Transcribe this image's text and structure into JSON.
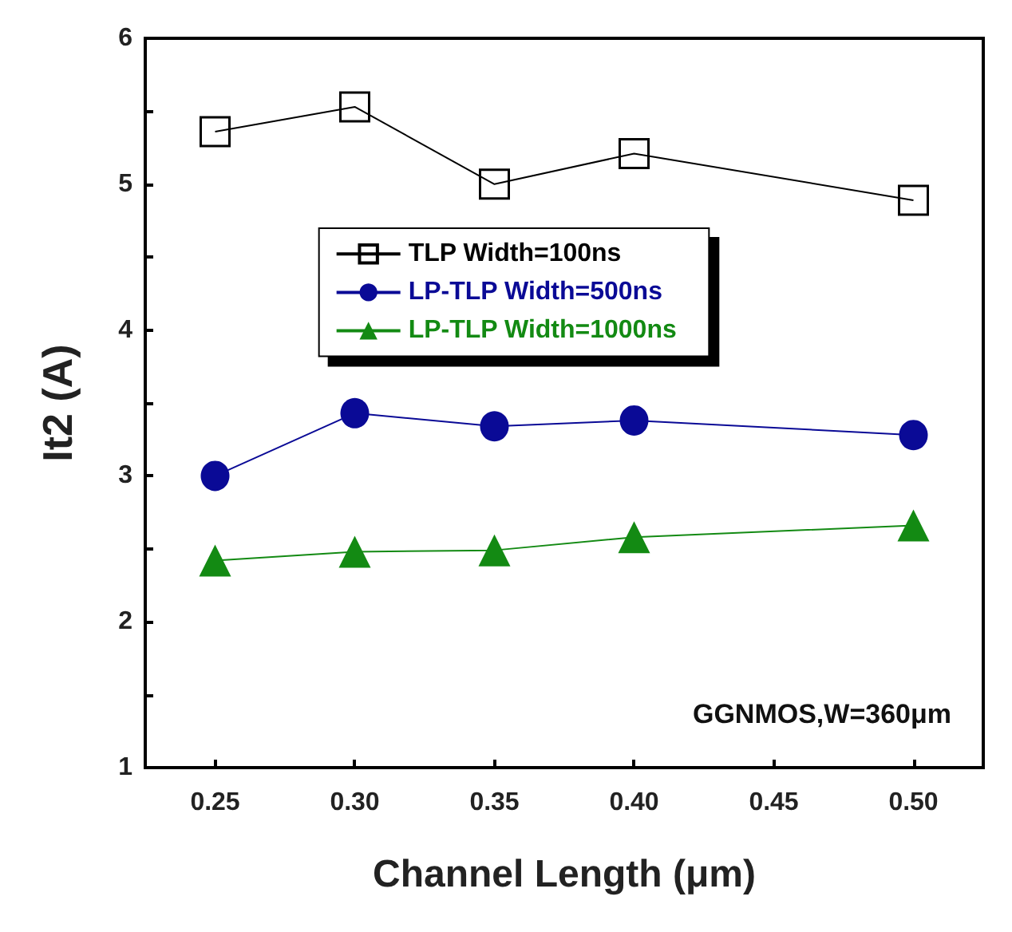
{
  "chart_data": {
    "type": "line",
    "xlabel": "Channel Length (μm)",
    "ylabel": "It2 (A)",
    "xlim": [
      0.225,
      0.525
    ],
    "xticks": [
      0.25,
      {
        "value": 0.3,
        "label": "0.30"
      },
      0.35,
      {
        "value": 0.4,
        "label": "0.40"
      },
      0.45,
      {
        "value": 0.5,
        "label": "0.50"
      }
    ],
    "ylim": [
      1,
      6
    ],
    "yticks": [
      1,
      {
        "value": 1.5,
        "label": null
      },
      2,
      {
        "value": 2.5,
        "label": null
      },
      3,
      {
        "value": 3.5,
        "label": null
      },
      4,
      {
        "value": 4.5,
        "label": null
      },
      5,
      {
        "value": 5.5,
        "label": null
      },
      6
    ],
    "x": [
      0.25,
      0.3,
      0.35,
      0.4,
      0.5
    ],
    "series": [
      {
        "name": "TLP Width=100ns",
        "color": "#000000",
        "marker": "square",
        "values": [
          5.36,
          5.53,
          5.0,
          5.21,
          4.89
        ]
      },
      {
        "name": "LP-TLP Width=500ns",
        "color": "#0a0a96",
        "marker": "circle",
        "values": [
          3.0,
          3.43,
          3.34,
          3.38,
          3.28
        ]
      },
      {
        "name": "LP-TLP Width=1000ns",
        "color": "#138a13",
        "marker": "triangle",
        "values": [
          2.42,
          2.48,
          2.49,
          2.58,
          2.66
        ]
      }
    ],
    "legend": "top",
    "grid": false,
    "line_style": "solid",
    "annotations": [
      "GGNMOS,W=360μm"
    ]
  }
}
